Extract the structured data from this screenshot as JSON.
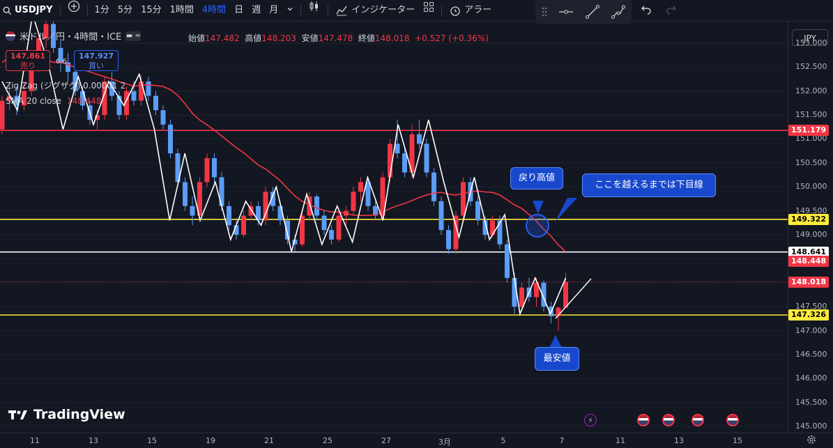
{
  "toolbar": {
    "symbol": "USDJPY",
    "timeframes": [
      "1分",
      "5分",
      "15分",
      "1時間",
      "4時間",
      "日",
      "週",
      "月"
    ],
    "active_timeframe": "4時間",
    "indicators_label": "インジケーター",
    "alert_label": "アラー"
  },
  "legend": {
    "title": "米ドル／円・4時間・ICE",
    "open_label": "始値",
    "open": "147.482",
    "high_label": "高値",
    "high": "148.203",
    "low_label": "安値",
    "low": "147.478",
    "close_label": "終値",
    "close": "148.018",
    "change": "+0.527 (+0.36%)",
    "sell_price": "147.861",
    "sell_label": "売り",
    "spread": "6.6",
    "buy_price": "147.927",
    "buy_label": "買い",
    "zigzag": "Zig Zag (ジグザグ) 0.00001 2",
    "sma_label": "SMA 20 close",
    "sma_value": "148.448"
  },
  "currency": "JPY",
  "brand": "TradingView",
  "callouts": {
    "recovery_high": "戻り高値",
    "downtrend_note": "ここを越えるまでは下目線",
    "lowest": "最安値"
  },
  "chart_data": {
    "type": "candlestick",
    "title": "米ドル／円・4時間・ICE",
    "y_ticks": [
      145.0,
      145.5,
      146.0,
      146.5,
      147.0,
      147.5,
      148.0,
      148.5,
      149.0,
      149.5,
      150.0,
      150.5,
      151.0,
      151.5,
      152.0,
      152.5,
      153.0
    ],
    "ylim": [
      144.87,
      153.45
    ],
    "x_ticks": [
      "11",
      "13",
      "15",
      "19",
      "21",
      "25",
      "27",
      "3月",
      "5",
      "7",
      "11",
      "13",
      "15"
    ],
    "horizontal_lines": [
      {
        "value": 151.179,
        "label": "151.179",
        "color": "#f23645"
      },
      {
        "value": 149.322,
        "label": "149.322",
        "color": "#ffeb3b"
      },
      {
        "value": 148.641,
        "label": "148.641",
        "color": "#ffffff"
      },
      {
        "value": 147.326,
        "label": "147.326",
        "color": "#ffeb3b"
      }
    ],
    "current_price": {
      "value": 148.018,
      "label": "148.018",
      "color": "#f23645"
    },
    "sma_20": {
      "name": "SMA 20 close",
      "last": 148.448,
      "color": "#f23645"
    },
    "zigzag_pivots": [
      152.2,
      151.6,
      153.6,
      152.6,
      151.2,
      152.3,
      151.3,
      152.2,
      151.7,
      152.35,
      151.2,
      149.3,
      150.7,
      149.3,
      150.1,
      148.9,
      149.7,
      149.2,
      150.0,
      148.65,
      149.85,
      148.8,
      149.6,
      148.85,
      150.2,
      149.3,
      151.3,
      150.2,
      151.4,
      150.1,
      148.95,
      150.2,
      148.9,
      149.42,
      147.35,
      148.1,
      147.35,
      148.1
    ],
    "candles": [
      [
        151.2,
        151.9,
        151.1,
        151.8
      ],
      [
        151.8,
        152.2,
        151.6,
        151.9
      ],
      [
        151.9,
        152.1,
        151.5,
        151.7
      ],
      [
        151.7,
        152.2,
        151.6,
        152.0
      ],
      [
        152.0,
        152.6,
        151.9,
        152.5
      ],
      [
        152.5,
        153.2,
        152.4,
        153.1
      ],
      [
        153.1,
        153.6,
        152.9,
        153.4
      ],
      [
        153.4,
        153.5,
        152.8,
        152.9
      ],
      [
        152.9,
        153.1,
        152.4,
        152.6
      ],
      [
        152.6,
        152.8,
        152.2,
        152.4
      ],
      [
        152.4,
        152.5,
        151.9,
        152.0
      ],
      [
        152.0,
        152.1,
        151.6,
        151.7
      ],
      [
        151.7,
        151.8,
        151.3,
        151.4
      ],
      [
        151.4,
        151.6,
        151.2,
        151.5
      ],
      [
        151.5,
        152.3,
        151.4,
        152.2
      ],
      [
        152.2,
        152.4,
        151.8,
        151.9
      ],
      [
        151.9,
        152.0,
        151.4,
        151.5
      ],
      [
        151.5,
        152.1,
        151.4,
        152.0
      ],
      [
        152.0,
        152.2,
        151.7,
        151.8
      ],
      [
        151.8,
        152.35,
        151.7,
        152.2
      ],
      [
        152.2,
        152.3,
        151.8,
        151.9
      ],
      [
        151.9,
        152.0,
        151.5,
        151.6
      ],
      [
        151.6,
        151.7,
        151.2,
        151.3
      ],
      [
        151.3,
        151.4,
        150.6,
        150.7
      ],
      [
        150.7,
        150.8,
        150.0,
        150.1
      ],
      [
        150.1,
        150.2,
        149.5,
        149.6
      ],
      [
        149.6,
        149.8,
        149.2,
        149.4
      ],
      [
        149.4,
        150.2,
        149.3,
        150.1
      ],
      [
        150.1,
        150.7,
        150.0,
        150.6
      ],
      [
        150.6,
        150.7,
        150.0,
        150.2
      ],
      [
        150.2,
        150.3,
        149.5,
        149.6
      ],
      [
        149.6,
        149.7,
        149.1,
        149.2
      ],
      [
        149.2,
        149.3,
        148.9,
        149.0
      ],
      [
        149.0,
        149.5,
        148.95,
        149.4
      ],
      [
        149.4,
        149.7,
        149.3,
        149.6
      ],
      [
        149.6,
        149.7,
        149.2,
        149.3
      ],
      [
        149.3,
        150.0,
        149.2,
        149.9
      ],
      [
        149.9,
        150.0,
        149.5,
        149.6
      ],
      [
        149.6,
        149.7,
        149.2,
        149.3
      ],
      [
        149.3,
        149.4,
        148.8,
        148.9
      ],
      [
        148.9,
        149.0,
        148.65,
        148.8
      ],
      [
        148.8,
        149.5,
        148.75,
        149.4
      ],
      [
        149.4,
        149.9,
        149.3,
        149.8
      ],
      [
        149.8,
        149.85,
        149.3,
        149.4
      ],
      [
        149.4,
        149.5,
        149.0,
        149.1
      ],
      [
        149.1,
        149.2,
        148.8,
        148.9
      ],
      [
        148.9,
        149.5,
        148.85,
        149.4
      ],
      [
        149.4,
        149.6,
        149.2,
        149.5
      ],
      [
        149.5,
        150.0,
        149.4,
        149.9
      ],
      [
        149.9,
        150.2,
        149.7,
        150.1
      ],
      [
        150.1,
        150.2,
        149.5,
        149.6
      ],
      [
        149.6,
        149.7,
        149.3,
        149.4
      ],
      [
        149.4,
        150.3,
        149.3,
        150.2
      ],
      [
        150.2,
        151.0,
        150.1,
        150.9
      ],
      [
        150.9,
        151.4,
        150.6,
        150.7
      ],
      [
        150.7,
        150.8,
        150.2,
        150.3
      ],
      [
        150.3,
        151.3,
        150.2,
        151.1
      ],
      [
        151.1,
        151.4,
        150.8,
        150.9
      ],
      [
        150.9,
        151.0,
        150.2,
        150.3
      ],
      [
        150.3,
        150.4,
        149.6,
        149.7
      ],
      [
        149.7,
        149.8,
        149.0,
        149.1
      ],
      [
        149.1,
        149.2,
        148.6,
        148.7
      ],
      [
        148.7,
        149.5,
        148.6,
        149.4
      ],
      [
        149.4,
        150.2,
        149.3,
        150.1
      ],
      [
        150.1,
        150.2,
        149.6,
        149.7
      ],
      [
        149.7,
        149.8,
        149.2,
        149.3
      ],
      [
        149.3,
        149.4,
        148.9,
        149.0
      ],
      [
        149.0,
        149.4,
        148.95,
        149.3
      ],
      [
        149.3,
        149.4,
        148.7,
        148.8
      ],
      [
        148.8,
        148.9,
        148.0,
        148.1
      ],
      [
        148.1,
        148.2,
        147.35,
        147.5
      ],
      [
        147.5,
        148.0,
        147.4,
        147.9
      ],
      [
        147.9,
        148.1,
        147.6,
        147.7
      ],
      [
        147.7,
        148.1,
        147.5,
        148.0
      ],
      [
        148.0,
        148.05,
        147.4,
        147.5
      ],
      [
        147.5,
        147.6,
        147.15,
        147.3
      ],
      [
        147.3,
        147.5,
        147.0,
        147.48
      ],
      [
        147.48,
        148.203,
        147.478,
        148.018
      ]
    ]
  }
}
